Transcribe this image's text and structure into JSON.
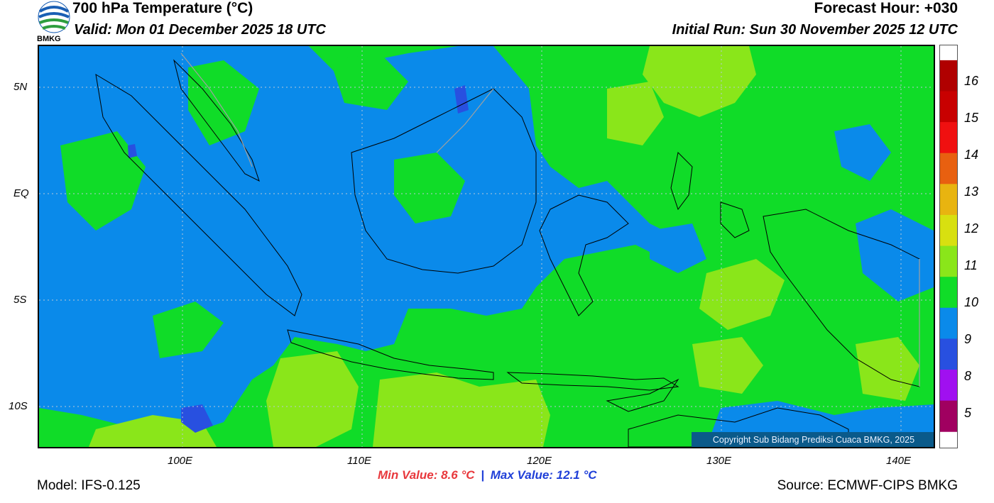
{
  "header": {
    "title": "700 hPa Temperature (°C)",
    "valid": "Valid: Mon 01 December 2025 18 UTC",
    "forecast_hour": "Forecast Hour: +030",
    "initial_run": "Initial Run: Sun 30 November 2025 12 UTC",
    "logo_text": "BMKG"
  },
  "map": {
    "lat_labels": [
      "5N",
      "EQ",
      "5S",
      "10S"
    ],
    "lon_labels": [
      "100E",
      "110E",
      "120E",
      "130E",
      "140E"
    ],
    "copyright": "Copyright Sub Bidang Prediksi Cuaca BMKG, 2025",
    "colors": {
      "band_9_10": "#0a8aea",
      "band_10_11": "#10dc28",
      "band_11_12": "#8ae61a",
      "band_8_9": "#2850e0",
      "coast": "#000000",
      "border": "#a0a0a0"
    }
  },
  "colorbar": {
    "labels": [
      "16",
      "15",
      "14",
      "13",
      "12",
      "11",
      "10",
      "9",
      "8",
      "5"
    ],
    "colors": [
      "#b00000",
      "#c80000",
      "#f01010",
      "#e86010",
      "#e8b410",
      "#d8e010",
      "#8ae61a",
      "#10dc28",
      "#0a8aea",
      "#2850e0",
      "#a010f0",
      "#a00060"
    ]
  },
  "footer": {
    "model": "Model: IFS-0.125",
    "source": "Source: ECMWF-CIPS BMKG",
    "min_value": "Min Value: 8.6 °C",
    "separator": "|",
    "max_value": "Max Value: 12.1 °C"
  }
}
